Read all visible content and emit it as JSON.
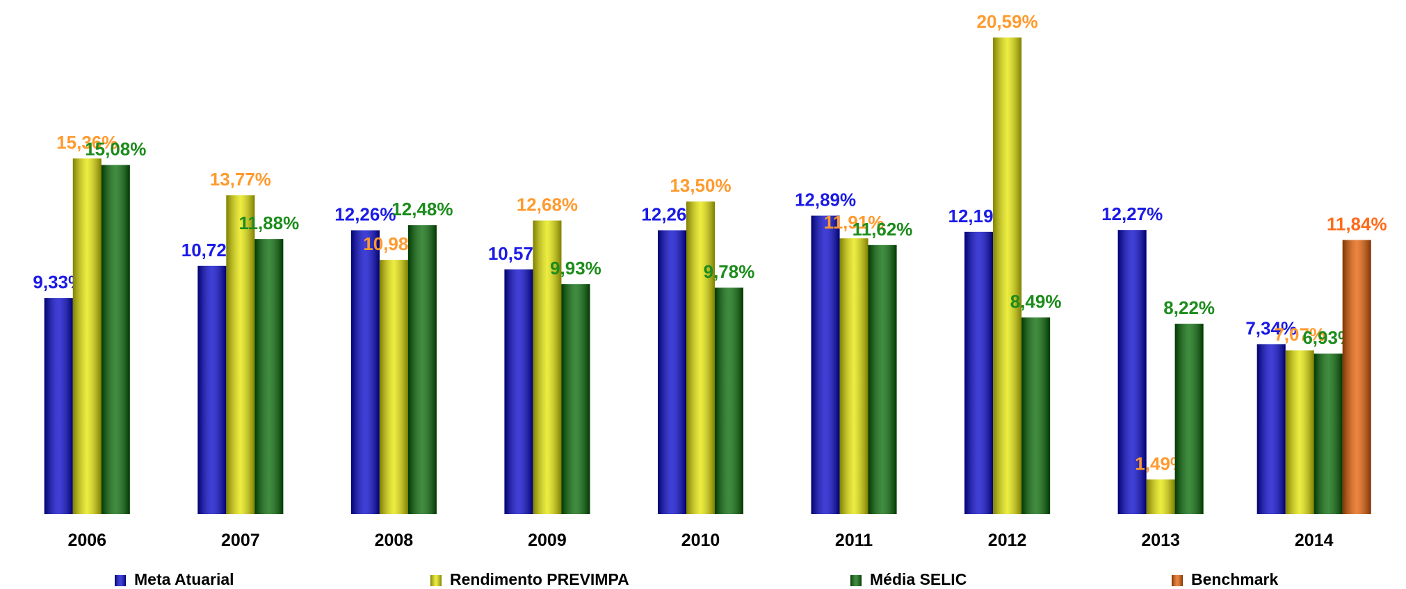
{
  "chart_data": {
    "type": "bar",
    "categories": [
      "2006",
      "2007",
      "2008",
      "2009",
      "2010",
      "2011",
      "2012",
      "2013",
      "2014"
    ],
    "series": [
      {
        "name": "Meta Atuarial",
        "color": "#0000cc",
        "label_color": "#1a1ae6",
        "values": [
          9.33,
          10.72,
          12.26,
          10.57,
          12.26,
          12.89,
          12.19,
          12.27,
          7.34
        ],
        "value_labels": [
          "9,33%",
          "10,72%",
          "12,26%",
          "10,57%",
          "12,26%",
          "12,89%",
          "12,19%",
          "12,27%",
          "7,34%"
        ]
      },
      {
        "name": "Rendimento PREVIMPA",
        "color": "#e6e600",
        "label_color": "#ff9a2e",
        "values": [
          15.36,
          13.77,
          10.98,
          12.68,
          13.5,
          11.91,
          20.59,
          1.49,
          7.07
        ],
        "value_labels": [
          "15,36%",
          "13,77%",
          "10,98%",
          "12,68%",
          "13,50%",
          "11,91%",
          "20,59%",
          "1,49%",
          "7,07%"
        ]
      },
      {
        "name": "Média SELIC",
        "color": "#006600",
        "label_color": "#1c8c1c",
        "values": [
          15.08,
          11.88,
          12.48,
          9.93,
          9.78,
          11.62,
          8.49,
          8.22,
          6.93
        ],
        "value_labels": [
          "15,08%",
          "11,88%",
          "12,48%",
          "9,93%",
          "9,78%",
          "11,62%",
          "8,49%",
          "8,22%",
          "6,93%"
        ]
      },
      {
        "name": "Benchmark",
        "color": "#e65c00",
        "label_color": "#ff6a1a",
        "values": [
          null,
          null,
          null,
          null,
          null,
          null,
          null,
          null,
          11.84
        ],
        "value_labels": [
          null,
          null,
          null,
          null,
          null,
          null,
          null,
          null,
          "11,84%"
        ]
      }
    ],
    "ylim": [
      0,
      22
    ]
  }
}
